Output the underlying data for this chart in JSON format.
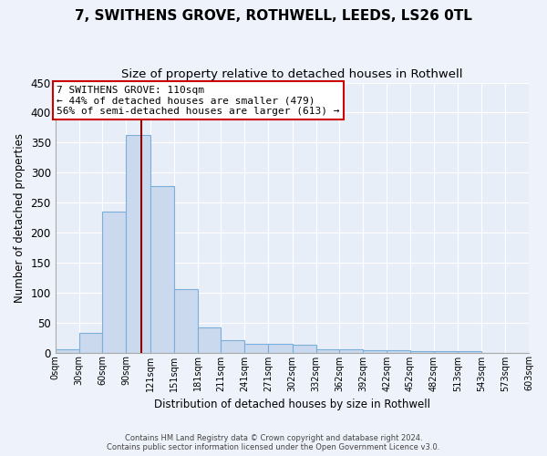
{
  "title": "7, SWITHENS GROVE, ROTHWELL, LEEDS, LS26 0TL",
  "subtitle": "Size of property relative to detached houses in Rothwell",
  "xlabel": "Distribution of detached houses by size in Rothwell",
  "ylabel": "Number of detached properties",
  "footer_line1": "Contains HM Land Registry data © Crown copyright and database right 2024.",
  "footer_line2": "Contains public sector information licensed under the Open Government Licence v3.0.",
  "bin_edges": [
    0,
    30,
    60,
    90,
    121,
    151,
    181,
    211,
    241,
    271,
    302,
    332,
    362,
    392,
    422,
    452,
    482,
    513,
    543,
    573,
    603
  ],
  "bar_heights": [
    5,
    33,
    235,
    362,
    277,
    105,
    42,
    20,
    15,
    15,
    13,
    5,
    5,
    4,
    4,
    3,
    2,
    2,
    0,
    0
  ],
  "bar_color": "#cad9ee",
  "bar_edge_color": "#7aafda",
  "vline_x": 110,
  "vline_color": "#8b0000",
  "annotation_line1": "7 SWITHENS GROVE: 110sqm",
  "annotation_line2": "← 44% of detached houses are smaller (479)",
  "annotation_line3": "56% of semi-detached houses are larger (613) →",
  "ylim": [
    0,
    450
  ],
  "yticks": [
    0,
    50,
    100,
    150,
    200,
    250,
    300,
    350,
    400,
    450
  ],
  "background_color": "#eef2fa",
  "plot_background_color": "#e8eef8",
  "grid_color": "#ffffff",
  "title_fontsize": 11,
  "subtitle_fontsize": 9.5,
  "tick_labels": [
    "0sqm",
    "30sqm",
    "60sqm",
    "90sqm",
    "121sqm",
    "151sqm",
    "181sqm",
    "211sqm",
    "241sqm",
    "271sqm",
    "302sqm",
    "332sqm",
    "362sqm",
    "392sqm",
    "422sqm",
    "452sqm",
    "482sqm",
    "513sqm",
    "543sqm",
    "573sqm",
    "603sqm"
  ]
}
